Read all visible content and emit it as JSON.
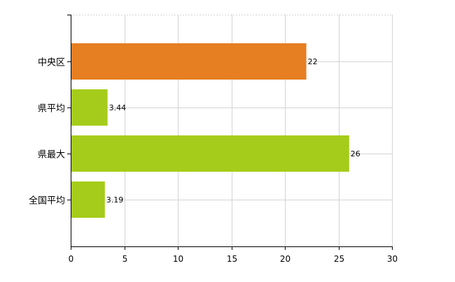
{
  "chart_data": {
    "type": "bar",
    "orientation": "horizontal",
    "categories": [
      "中央区",
      "県平均",
      "県最大",
      "全国平均"
    ],
    "values": [
      22,
      3.44,
      26,
      3.19
    ],
    "value_labels": [
      "22",
      "3.44",
      "26",
      "3.19"
    ],
    "bar_colors": [
      "#e67e22",
      "#a5cc1a",
      "#a5cc1a",
      "#a5cc1a"
    ],
    "xlim": [
      0,
      30
    ],
    "x_ticks": [
      0,
      5,
      10,
      15,
      20,
      25,
      30
    ],
    "x_tick_labels": [
      "0",
      "5",
      "10",
      "15",
      "20",
      "25",
      "30"
    ],
    "grid": true,
    "legend": "none"
  }
}
